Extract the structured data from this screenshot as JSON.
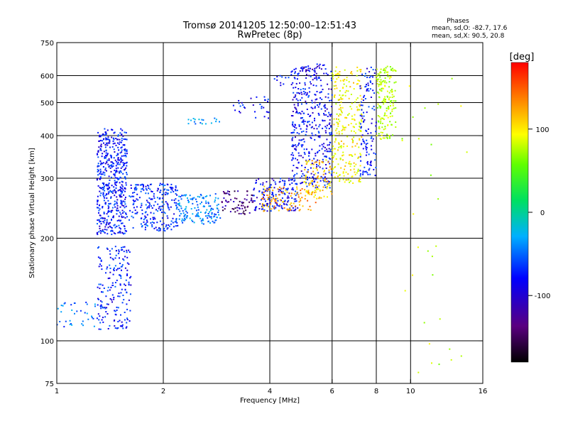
{
  "chart_data": {
    "type": "scatter",
    "title": "Tromsø 20141205 12:50:00–12:51:43",
    "subtitle": "RwPretec (8p)",
    "xlabel": "Frequency [MHz]",
    "ylabel": "Stationary phase Virtual Height [km]",
    "x_scale": "log",
    "y_scale": "log",
    "xlim": [
      1,
      16
    ],
    "ylim": [
      75,
      750
    ],
    "x_ticks": [
      1,
      2,
      4,
      6,
      8,
      10,
      16
    ],
    "y_ticks": [
      75,
      100,
      200,
      300,
      400,
      500,
      600,
      750
    ],
    "x_grid": [
      2,
      4,
      6,
      8,
      10
    ],
    "y_grid": [
      100,
      200,
      300,
      400,
      500,
      600
    ],
    "grid": true,
    "stats": {
      "heading": "Phases",
      "line_o": "mean, sd,O: -82.7, 17.6",
      "line_x": "mean, sd,X:  90.5, 20.8"
    },
    "colorbar": {
      "label": "[deg]",
      "range": [
        -180,
        180
      ],
      "ticks": [
        100,
        0,
        -100
      ],
      "placement": "right"
    },
    "clusters": [
      {
        "x": [
          1.3,
          1.58
        ],
        "y": [
          205,
          420
        ],
        "phase": -95,
        "n": 520
      },
      {
        "x": [
          1.3,
          1.62
        ],
        "y": [
          108,
          190
        ],
        "phase": -92,
        "n": 190
      },
      {
        "x": [
          1.0,
          1.3
        ],
        "y": [
          110,
          130
        ],
        "phase": -70,
        "n": 35
      },
      {
        "x": [
          1.6,
          2.2
        ],
        "y": [
          210,
          290
        ],
        "phase": -88,
        "n": 240
      },
      {
        "x": [
          2.2,
          2.9
        ],
        "y": [
          220,
          270
        ],
        "phase": -65,
        "n": 150
      },
      {
        "x": [
          2.9,
          3.6
        ],
        "y": [
          235,
          275
        ],
        "phase": -140,
        "n": 70
      },
      {
        "x": [
          3.6,
          4.8
        ],
        "y": [
          240,
          300
        ],
        "phase": -100,
        "n": 160
      },
      {
        "x": [
          3.8,
          5.4
        ],
        "y": [
          240,
          285
        ],
        "phase": 130,
        "n": 100
      },
      {
        "x": [
          4.6,
          6.0
        ],
        "y": [
          280,
          640
        ],
        "phase": -100,
        "n": 420
      },
      {
        "x": [
          5.0,
          6.0
        ],
        "y": [
          260,
          340
        ],
        "phase": 115,
        "n": 90
      },
      {
        "x": [
          6.0,
          7.3
        ],
        "y": [
          290,
          640
        ],
        "phase": 100,
        "n": 260
      },
      {
        "x": [
          7.2,
          8.0
        ],
        "y": [
          300,
          640
        ],
        "phase": -95,
        "n": 120
      },
      {
        "x": [
          8.0,
          9.1
        ],
        "y": [
          390,
          640
        ],
        "phase": 75,
        "n": 170
      },
      {
        "x": [
          2.3,
          2.9
        ],
        "y": [
          430,
          450
        ],
        "phase": -60,
        "n": 18
      },
      {
        "x": [
          3.1,
          4.0
        ],
        "y": [
          450,
          520
        ],
        "phase": -95,
        "n": 30
      },
      {
        "x": [
          4.1,
          4.6
        ],
        "y": [
          560,
          600
        ],
        "phase": -100,
        "n": 10
      },
      {
        "x": [
          4.9,
          5.7
        ],
        "y": [
          620,
          650
        ],
        "phase": -110,
        "n": 20
      },
      {
        "x": [
          9.3,
          14.5
        ],
        "y": [
          80,
          650
        ],
        "phase": 80,
        "n": 30
      }
    ]
  }
}
